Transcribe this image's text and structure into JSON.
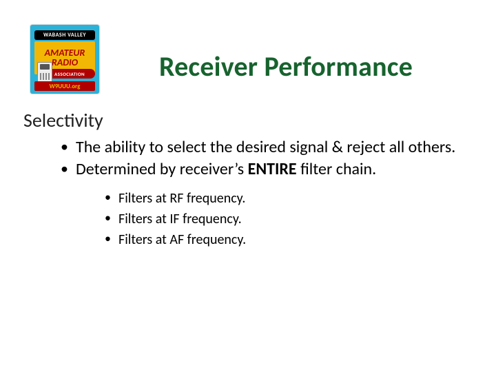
{
  "logo": {
    "top_band": "WABASH VALLEY",
    "line1": "AMATEUR",
    "line2": "RADIO",
    "assoc": "ASSOCIATION",
    "bottom": "W9UUU.org",
    "colors": {
      "bg": "#2bb2d9",
      "band_top": "#000000",
      "mid_bg": "#f2b705",
      "mid_text": "#b00000",
      "assoc_bg": "#b00000",
      "bottom_bg": "#b00000",
      "bottom_text": "#f2b705"
    }
  },
  "title": {
    "text": "Receiver Performance",
    "color": "#17632e",
    "fontsize": 40,
    "fontweight": 700
  },
  "subhead": {
    "text": "Selectivity",
    "fontsize": 28
  },
  "bullets_level1": [
    {
      "text": "The ability to select the desired signal & reject all others."
    },
    {
      "prefix": "Determined by receiver’s ",
      "bold": "ENTIRE",
      "suffix": " filter chain."
    }
  ],
  "bullets_level2": [
    "Filters at RF frequency.",
    "Filters at IF frequency.",
    "Filters at AF frequency."
  ],
  "style": {
    "bullet1_fontsize": 24,
    "bullet2_fontsize": 20,
    "background": "#ffffff",
    "text_color": "#000000"
  }
}
